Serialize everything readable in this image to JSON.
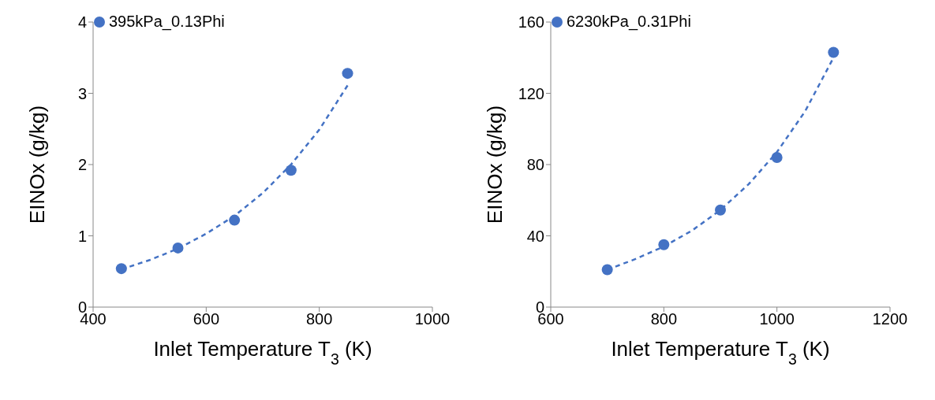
{
  "chart_data": [
    {
      "type": "scatter",
      "xlabel": "Inlet Temperature T$_{3}$ (K)",
      "ylabel": "EINOx (g/kg)",
      "xlim": [
        400,
        1000
      ],
      "xticks": [
        400,
        600,
        800,
        1000
      ],
      "ylim": [
        0,
        4
      ],
      "yticks": [
        0,
        1,
        2,
        3,
        4
      ],
      "legend": "top left",
      "marker": "circle",
      "series": [
        {
          "name": "395kPa_0.13Phi",
          "color": "#4472c4",
          "x": [
            450,
            550,
            650,
            750,
            850
          ],
          "values": [
            0.54,
            0.83,
            1.22,
            1.92,
            3.28
          ]
        },
        {
          "type": "line",
          "color": "#4472c4",
          "line_style": "dashed",
          "marker": "none",
          "x": [
            450,
            500,
            550,
            600,
            650,
            700,
            750,
            800,
            850
          ],
          "values": [
            0.53,
            0.66,
            0.82,
            1.03,
            1.28,
            1.6,
            2.0,
            2.49,
            3.11
          ]
        }
      ]
    },
    {
      "type": "scatter",
      "xlabel": "Inlet Temperature T$_{3}$ (K)",
      "ylabel": "EINOx (g/kg)",
      "xlim": [
        600,
        1200
      ],
      "xticks": [
        600,
        800,
        1000,
        1200
      ],
      "ylim": [
        0,
        160
      ],
      "yticks": [
        0,
        40,
        80,
        120,
        160
      ],
      "legend": "top left",
      "marker": "circle",
      "series": [
        {
          "name": "6230kPa_0.31Phi",
          "color": "#4472c4",
          "x": [
            700,
            800,
            900,
            1000,
            1100
          ],
          "values": [
            21,
            35,
            54.5,
            84,
            143
          ]
        },
        {
          "type": "line",
          "color": "#4472c4",
          "line_style": "dashed",
          "marker": "none",
          "x": [
            700,
            750,
            800,
            850,
            900,
            950,
            1000,
            1050,
            1100
          ],
          "values": [
            21,
            27,
            34,
            43,
            54.5,
            69,
            87,
            110,
            140
          ]
        }
      ]
    }
  ]
}
